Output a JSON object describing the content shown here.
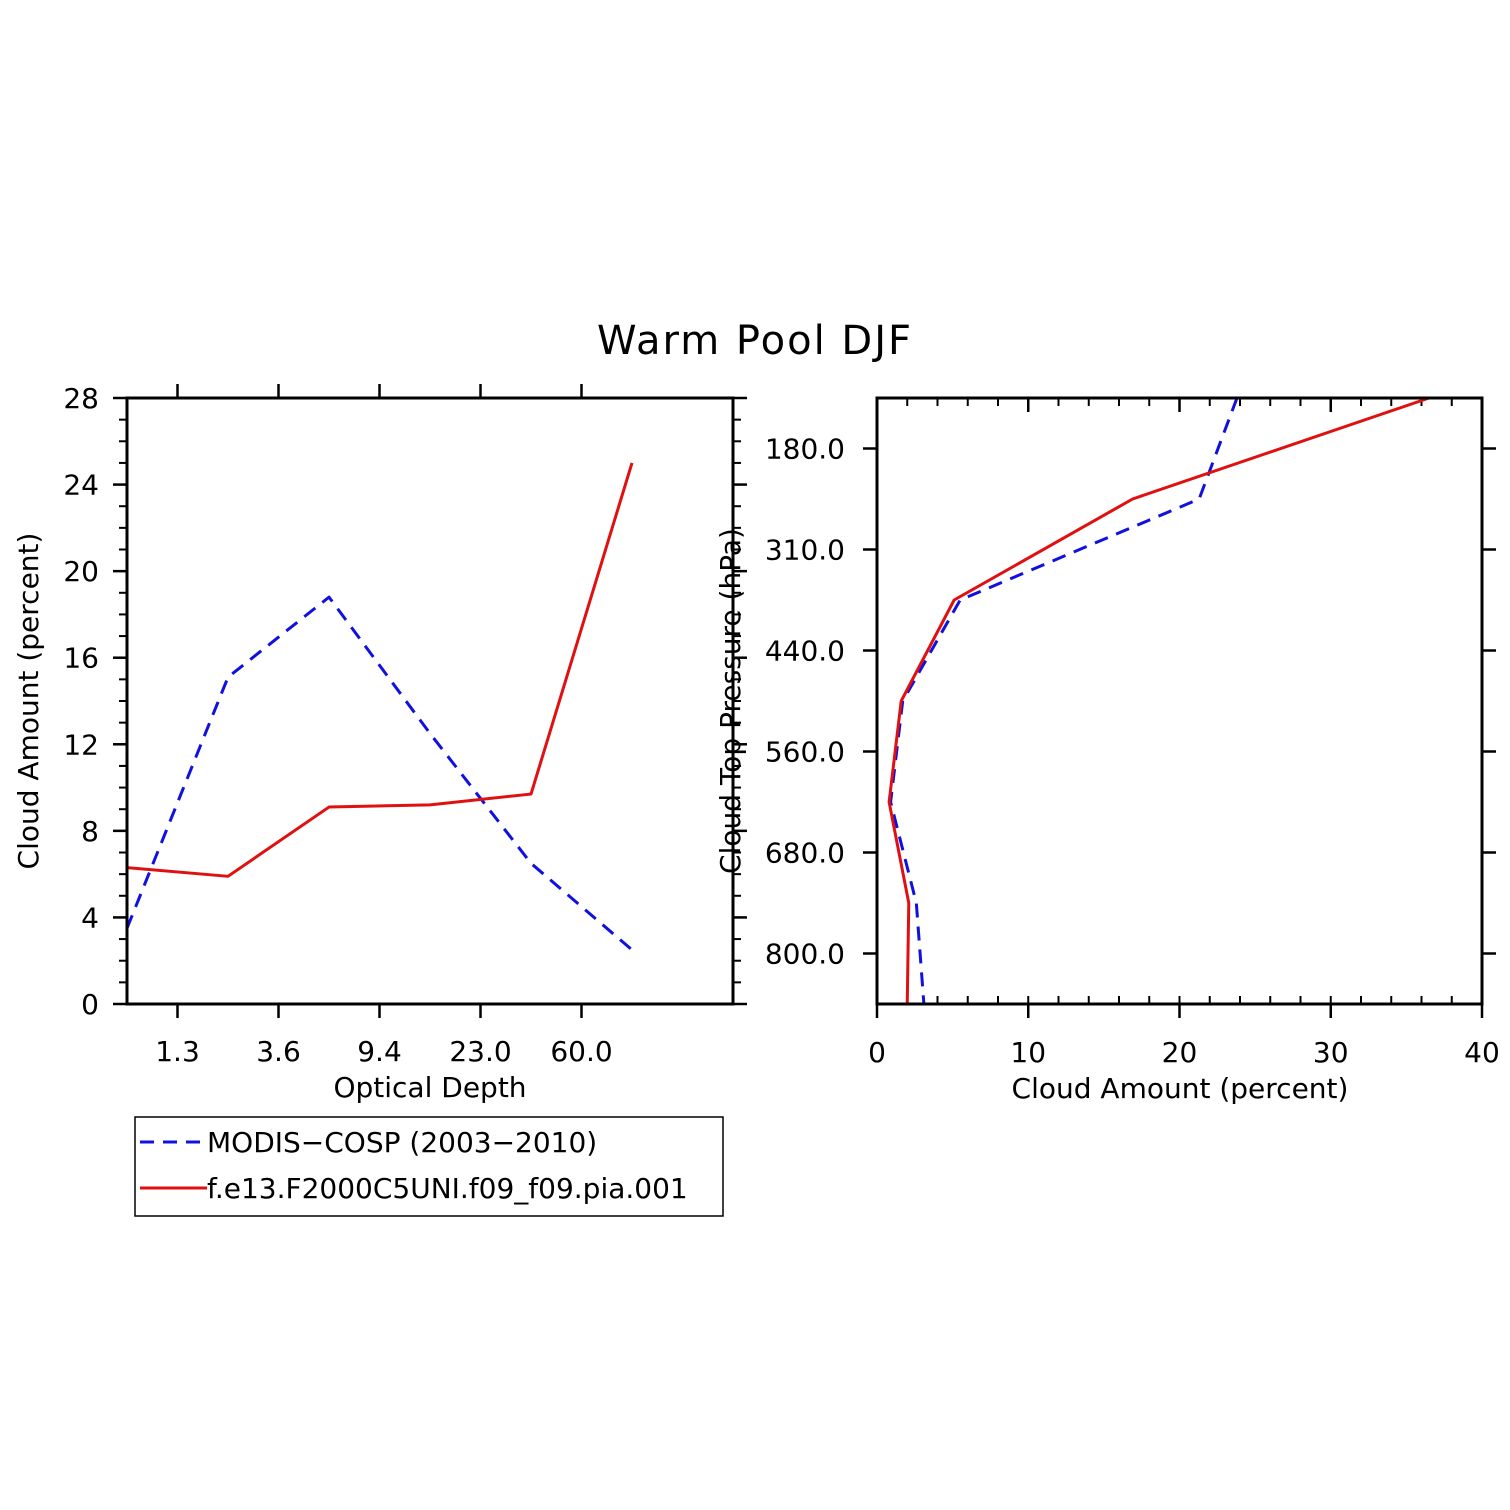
{
  "title": "Warm Pool DJF",
  "colors": {
    "obs": "#1010e0",
    "model": "#e01010",
    "axis": "#000000"
  },
  "chart_data": [
    {
      "type": "line",
      "id": "left",
      "xlabel": "Optical Depth",
      "ylabel": "Cloud Amount (percent)",
      "ylim": [
        0,
        28
      ],
      "y_ticks": [
        "0",
        "4",
        "8",
        "12",
        "16",
        "20",
        "24",
        "28"
      ],
      "y_tick_values": [
        0,
        4,
        8,
        12,
        16,
        20,
        24,
        28
      ],
      "y_minor_step": 1,
      "x_categories": 7,
      "x_ticks": [
        "1.3",
        "3.6",
        "9.4",
        "23.0",
        "60.0"
      ],
      "x_tick_positions": [
        0.5,
        1.5,
        2.5,
        3.5,
        4.5
      ],
      "x_ticks_on_top": true,
      "series": [
        {
          "name": "MODIS-COSP (2003-2010)",
          "style": "dashed",
          "color_key": "obs",
          "x": [
            0,
            1,
            2,
            3,
            4,
            5
          ],
          "values": [
            3.5,
            15.1,
            18.8,
            12.5,
            6.5,
            2.5
          ]
        },
        {
          "name": "f.e13.F2000C5UNI.f09_f09.pia.001",
          "style": "solid",
          "color_key": "model",
          "x": [
            0,
            1,
            2,
            3,
            4,
            5
          ],
          "values": [
            6.3,
            5.9,
            9.1,
            9.2,
            9.7,
            25.0
          ]
        }
      ]
    },
    {
      "type": "line",
      "id": "right",
      "xlabel": "Cloud Amount (percent)",
      "ylabel": "Cloud Top Pressure (hPa)",
      "xlim": [
        0,
        40
      ],
      "x_ticks": [
        "0",
        "10",
        "20",
        "30",
        "40"
      ],
      "x_tick_values": [
        0,
        10,
        20,
        30,
        40
      ],
      "x_minor_step": 2,
      "y_levels": 6,
      "y_ticks": [
        "180.0",
        "310.0",
        "440.0",
        "560.0",
        "680.0",
        "800.0"
      ],
      "y_tick_positions": [
        0.5,
        1.5,
        2.5,
        3.5,
        4.5,
        5.5
      ],
      "y_direction": "top-down",
      "series": [
        {
          "name": "MODIS-COSP (2003-2010)",
          "style": "dashed",
          "color_key": "obs",
          "values": [
            23.8,
            21.3,
            5.5,
            1.7,
            0.9,
            2.6,
            3.1
          ],
          "level": [
            0,
            1,
            2,
            3,
            4,
            5,
            6
          ]
        },
        {
          "name": "f.e13.F2000C5UNI.f09_f09.pia.001",
          "style": "solid",
          "color_key": "model",
          "values": [
            36.5,
            16.9,
            5.1,
            1.6,
            0.8,
            2.1,
            2.0
          ],
          "level": [
            0,
            1,
            2,
            3,
            4,
            5,
            6
          ]
        }
      ]
    }
  ],
  "legend": {
    "placement": "bottom-left",
    "items": [
      {
        "label": "MODIS−COSP (2003−2010)",
        "style": "dashed",
        "color_key": "obs"
      },
      {
        "label": "f.e13.F2000C5UNI.f09_f09.pia.001",
        "style": "solid",
        "color_key": "model"
      }
    ]
  }
}
